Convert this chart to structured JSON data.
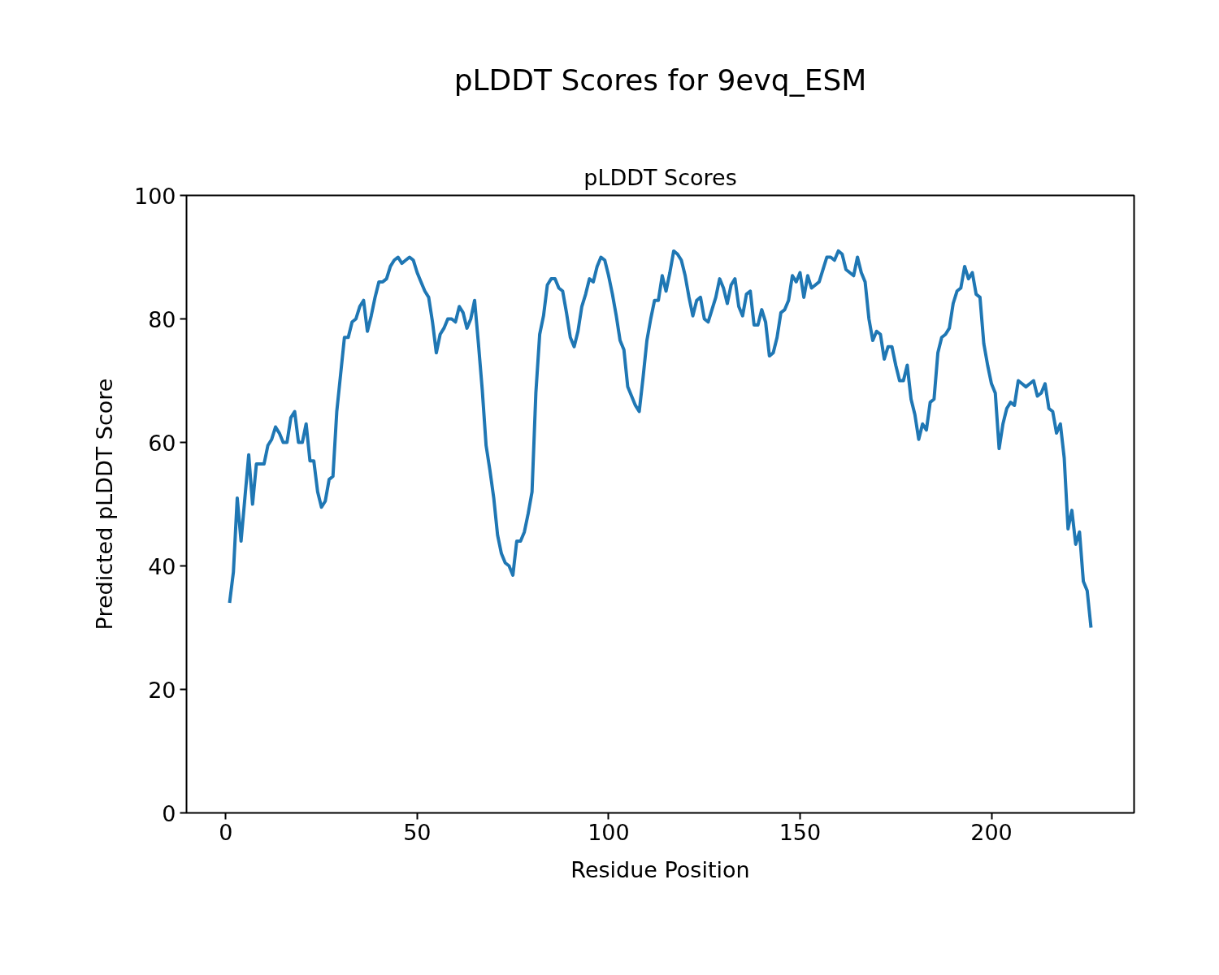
{
  "chart_data": {
    "type": "line",
    "title": "pLDDT Scores for 9evq_ESM",
    "subtitle": "pLDDT Scores",
    "xlabel": "Residue Position",
    "ylabel": "Predicted pLDDT Score",
    "x": [
      1,
      2,
      3,
      4,
      5,
      6,
      7,
      8,
      9,
      10,
      11,
      12,
      13,
      14,
      15,
      16,
      17,
      18,
      19,
      20,
      21,
      22,
      23,
      24,
      25,
      26,
      27,
      28,
      29,
      30,
      31,
      32,
      33,
      34,
      35,
      36,
      37,
      38,
      39,
      40,
      41,
      42,
      43,
      44,
      45,
      46,
      47,
      48,
      49,
      50,
      51,
      52,
      53,
      54,
      55,
      56,
      57,
      58,
      59,
      60,
      61,
      62,
      63,
      64,
      65,
      66,
      67,
      68,
      69,
      70,
      71,
      72,
      73,
      74,
      75,
      76,
      77,
      78,
      79,
      80,
      81,
      82,
      83,
      84,
      85,
      86,
      87,
      88,
      89,
      90,
      91,
      92,
      93,
      94,
      95,
      96,
      97,
      98,
      99,
      100,
      101,
      102,
      103,
      104,
      105,
      106,
      107,
      108,
      109,
      110,
      111,
      112,
      113,
      114,
      115,
      116,
      117,
      118,
      119,
      120,
      121,
      122,
      123,
      124,
      125,
      126,
      127,
      128,
      129,
      130,
      131,
      132,
      133,
      134,
      135,
      136,
      137,
      138,
      139,
      140,
      141,
      142,
      143,
      144,
      145,
      146,
      147,
      148,
      149,
      150,
      151,
      152,
      153,
      154,
      155,
      156,
      157,
      158,
      159,
      160,
      161,
      162,
      163,
      164,
      165,
      166,
      167,
      168,
      169,
      170,
      171,
      172,
      173,
      174,
      175,
      176,
      177,
      178,
      179,
      180,
      181,
      182,
      183,
      184,
      185,
      186,
      187,
      188,
      189,
      190,
      191,
      192,
      193,
      194,
      195,
      196,
      197,
      198,
      199,
      200,
      201,
      202,
      203,
      204,
      205,
      206,
      207,
      208,
      209,
      210,
      211,
      212,
      213,
      214,
      215,
      216,
      217,
      218,
      219,
      220,
      221,
      222,
      223,
      224,
      225,
      226
    ],
    "series": [
      {
        "color": "#1f77b4",
        "values": [
          34,
          39,
          51,
          44,
          51,
          58,
          50,
          56.5,
          56.5,
          56.5,
          59.5,
          60.5,
          62.5,
          61.5,
          60,
          60,
          64,
          65,
          60,
          60,
          63,
          57,
          57,
          52,
          49.5,
          50.5,
          54,
          54.5,
          65,
          71,
          77,
          77,
          79.5,
          80,
          82,
          83,
          78,
          80.5,
          83.5,
          86,
          86,
          86.5,
          88.5,
          89.5,
          90,
          89,
          89.5,
          90,
          89.5,
          87.5,
          86,
          84.5,
          83.5,
          79.5,
          74.5,
          77.5,
          78.5,
          80,
          80,
          79.5,
          82,
          81,
          78.5,
          80,
          83,
          76,
          68.5,
          59.5,
          55.5,
          51,
          45,
          42,
          40.5,
          40,
          38.5,
          44,
          44,
          45.5,
          48.5,
          52,
          68,
          77.5,
          80.5,
          85.5,
          86.5,
          86.5,
          85,
          84.5,
          81,
          77,
          75.5,
          78,
          82,
          84,
          86.5,
          86,
          88.5,
          90,
          89.5,
          87,
          84,
          80.5,
          76.5,
          75,
          69,
          67.5,
          66,
          65,
          70.5,
          76.5,
          80,
          83,
          83,
          87,
          84.5,
          87.5,
          91,
          90.5,
          89.5,
          87,
          83.5,
          80.5,
          83,
          83.5,
          80,
          79.5,
          81.5,
          83.5,
          86.5,
          85,
          82.5,
          85.5,
          86.5,
          82,
          80.5,
          84,
          84.5,
          79,
          79,
          81.5,
          79.5,
          74,
          74.5,
          77,
          81,
          81.5,
          83,
          87,
          86,
          87.5,
          83.5,
          87,
          85,
          85.5,
          86,
          88,
          90,
          90,
          89.5,
          91,
          90.5,
          88,
          87.5,
          87,
          90,
          87.5,
          86,
          80,
          76.5,
          78,
          77.5,
          73.5,
          75.5,
          75.5,
          72.5,
          70,
          70,
          72.5,
          67,
          64.5,
          60.5,
          63,
          62,
          66.5,
          67,
          74.5,
          77,
          77.5,
          78.5,
          82.5,
          84.5,
          85,
          88.5,
          86.5,
          87.5,
          84,
          83.5,
          76,
          72.5,
          69.5,
          68,
          59,
          63,
          65.5,
          66.5,
          66,
          70,
          69.5,
          69,
          69.5,
          70,
          67.5,
          68,
          69.5,
          65.5,
          65,
          61.5,
          63,
          57.5,
          46,
          49,
          43.5,
          45.5,
          37.5,
          36,
          30
        ]
      }
    ],
    "xlim": [
      -10.25,
      237.25
    ],
    "ylim": [
      0,
      100
    ],
    "xticks": [
      0,
      50,
      100,
      150,
      200
    ],
    "yticks": [
      0,
      20,
      40,
      60,
      80,
      100
    ],
    "grid": false,
    "marker": "none",
    "line_style": "solid"
  }
}
